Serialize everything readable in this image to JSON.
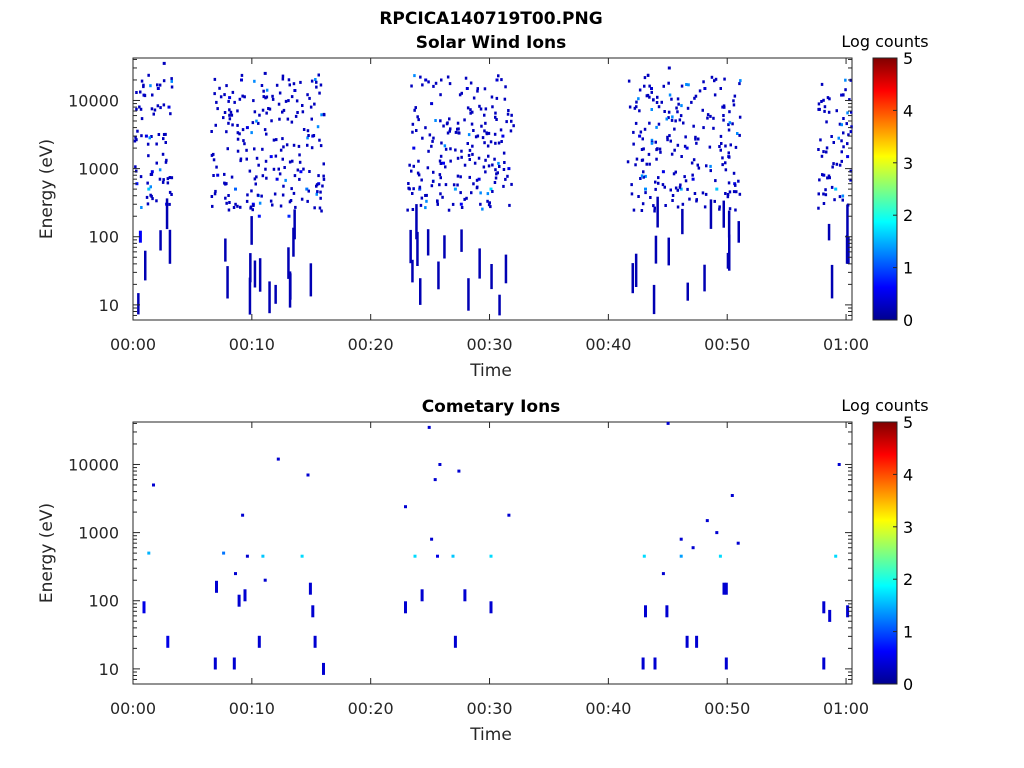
{
  "figure_title": "RPCICA140719T00.PNG",
  "chart_data": [
    {
      "type": "heatmap",
      "title": "Solar Wind Ions",
      "xlabel": "Time",
      "ylabel": "Energy (eV)",
      "x_ticks": [
        "00:00",
        "00:10",
        "00:20",
        "00:30",
        "00:40",
        "00:50",
        "01:00"
      ],
      "x_tick_minutes": [
        0,
        10,
        20,
        30,
        40,
        50,
        60
      ],
      "xlim_minutes": [
        0,
        60.5
      ],
      "y_scale": "log",
      "y_ticks": [
        "10",
        "100",
        "1000",
        "10000"
      ],
      "y_tick_values": [
        10,
        100,
        1000,
        10000
      ],
      "ylim": [
        6,
        42000
      ],
      "colorbar": {
        "label": "Log counts",
        "ticks": [
          "0",
          "1",
          "2",
          "3",
          "4",
          "5"
        ],
        "range": [
          0,
          5
        ],
        "colormap": "jet"
      },
      "active_intervals_minutes": [
        [
          0,
          3.2
        ],
        [
          6.5,
          16
        ],
        [
          23,
          32
        ],
        [
          41.5,
          51
        ],
        [
          57.5,
          60.5
        ]
      ],
      "points": [
        [
          0.2,
          600,
          0.7
        ],
        [
          0.5,
          100,
          0.6
        ],
        [
          0.8,
          12000,
          0.4
        ],
        [
          1.0,
          3000,
          0.5
        ],
        [
          1.2,
          500,
          1.6
        ],
        [
          1.5,
          900,
          0.5
        ],
        [
          2.0,
          15000,
          0.4
        ],
        [
          2.5,
          35000,
          0.3
        ],
        [
          2.7,
          300,
          0.6
        ],
        [
          2.9,
          8000,
          0.5
        ],
        [
          7.0,
          800,
          0.5
        ],
        [
          8.0,
          11000,
          0.5
        ],
        [
          8.5,
          500,
          1.1
        ],
        [
          9.0,
          20000,
          0.4
        ],
        [
          9.5,
          4000,
          0.5
        ],
        [
          10.0,
          300,
          0.6
        ],
        [
          10.5,
          200,
          0.7
        ],
        [
          11.0,
          25000,
          0.3
        ],
        [
          11.5,
          1500,
          0.6
        ],
        [
          12.0,
          700,
          0.5
        ],
        [
          13.0,
          200,
          0.8
        ],
        [
          13.5,
          14000,
          0.4
        ],
        [
          14.0,
          900,
          0.6
        ],
        [
          14.5,
          500,
          1.2
        ],
        [
          15.0,
          3000,
          0.5
        ],
        [
          15.5,
          600,
          0.5
        ],
        [
          23.5,
          2000,
          0.5
        ],
        [
          24.0,
          500,
          1.0
        ],
        [
          24.5,
          20000,
          0.4
        ],
        [
          25.0,
          9000,
          0.4
        ],
        [
          26.0,
          1200,
          0.6
        ],
        [
          27.0,
          500,
          1.4
        ],
        [
          27.5,
          300,
          0.6
        ],
        [
          28.0,
          15000,
          0.4
        ],
        [
          29.0,
          700,
          0.5
        ],
        [
          30.0,
          500,
          1.7
        ],
        [
          30.5,
          20000,
          0.4
        ],
        [
          31.0,
          3000,
          0.5
        ],
        [
          31.5,
          1000,
          0.5
        ],
        [
          42.5,
          3000,
          0.5
        ],
        [
          43.0,
          500,
          1.3
        ],
        [
          43.5,
          15000,
          0.4
        ],
        [
          44.5,
          900,
          0.5
        ],
        [
          45.0,
          30000,
          0.3
        ],
        [
          46.0,
          500,
          1.5
        ],
        [
          46.5,
          2000,
          0.5
        ],
        [
          47.0,
          700,
          0.5
        ],
        [
          48.0,
          15000,
          0.4
        ],
        [
          49.0,
          500,
          1.6
        ],
        [
          49.5,
          8000,
          0.4
        ],
        [
          50.0,
          1500,
          0.5
        ],
        [
          50.5,
          600,
          0.5
        ],
        [
          58.0,
          800,
          0.4
        ],
        [
          59.0,
          500,
          1.6
        ],
        [
          59.5,
          12000,
          0.4
        ],
        [
          60.0,
          1500,
          0.5
        ]
      ]
    },
    {
      "type": "heatmap",
      "title": "Cometary Ions",
      "xlabel": "Time",
      "ylabel": "Energy (eV)",
      "x_ticks": [
        "00:00",
        "00:10",
        "00:20",
        "00:30",
        "00:40",
        "00:50",
        "01:00"
      ],
      "x_tick_minutes": [
        0,
        10,
        20,
        30,
        40,
        50,
        60
      ],
      "xlim_minutes": [
        0,
        60.5
      ],
      "y_scale": "log",
      "y_ticks": [
        "10",
        "100",
        "1000",
        "10000"
      ],
      "y_tick_values": [
        10,
        100,
        1000,
        10000
      ],
      "ylim": [
        6,
        42000
      ],
      "colorbar": {
        "label": "Log counts",
        "ticks": [
          "0",
          "1",
          "2",
          "3",
          "4",
          "5"
        ],
        "range": [
          0,
          5
        ],
        "colormap": "jet"
      },
      "points": [
        [
          0.8,
          80,
          0.5
        ],
        [
          1.2,
          500,
          1.5
        ],
        [
          1.6,
          5000,
          0.4
        ],
        [
          2.8,
          25,
          0.5
        ],
        [
          6.8,
          12,
          0.4
        ],
        [
          6.9,
          160,
          0.4
        ],
        [
          7.5,
          500,
          1.2
        ],
        [
          8.4,
          12,
          0.4
        ],
        [
          8.5,
          250,
          0.4
        ],
        [
          8.8,
          100,
          0.4
        ],
        [
          9.1,
          1800,
          0.4
        ],
        [
          9.3,
          120,
          0.4
        ],
        [
          9.5,
          450,
          0.4
        ],
        [
          10.5,
          25,
          0.4
        ],
        [
          10.8,
          450,
          1.6
        ],
        [
          11.0,
          200,
          0.4
        ],
        [
          12.1,
          12000,
          0.4
        ],
        [
          14.1,
          450,
          1.7
        ],
        [
          14.6,
          7000,
          0.4
        ],
        [
          14.8,
          150,
          0.4
        ],
        [
          15.0,
          70,
          0.4
        ],
        [
          15.2,
          25,
          0.4
        ],
        [
          15.9,
          10,
          0.4
        ],
        [
          22.8,
          80,
          0.4
        ],
        [
          22.8,
          2400,
          0.4
        ],
        [
          23.6,
          450,
          1.7
        ],
        [
          24.2,
          120,
          0.4
        ],
        [
          24.8,
          35000,
          0.4
        ],
        [
          25.0,
          800,
          0.4
        ],
        [
          25.3,
          6000,
          0.4
        ],
        [
          25.5,
          450,
          0.5
        ],
        [
          25.7,
          10000,
          0.4
        ],
        [
          26.8,
          450,
          1.6
        ],
        [
          27.0,
          25,
          0.4
        ],
        [
          27.3,
          8000,
          0.4
        ],
        [
          27.8,
          120,
          0.4
        ],
        [
          30.0,
          450,
          1.7
        ],
        [
          30.0,
          80,
          0.4
        ],
        [
          31.5,
          1800,
          0.4
        ],
        [
          42.8,
          12,
          0.4
        ],
        [
          42.9,
          450,
          1.7
        ],
        [
          43.0,
          70,
          0.4
        ],
        [
          43.8,
          12,
          0.4
        ],
        [
          44.5,
          250,
          0.4
        ],
        [
          44.8,
          70,
          0.4
        ],
        [
          44.9,
          40000,
          0.4
        ],
        [
          46.0,
          800,
          0.4
        ],
        [
          46.0,
          450,
          1.4
        ],
        [
          46.5,
          25,
          0.4
        ],
        [
          47.0,
          600,
          0.4
        ],
        [
          47.3,
          25,
          0.4
        ],
        [
          48.2,
          1500,
          0.4
        ],
        [
          49.0,
          1000,
          0.4
        ],
        [
          49.3,
          450,
          1.7
        ],
        [
          49.6,
          150,
          0.4
        ],
        [
          49.8,
          150,
          0.4
        ],
        [
          49.8,
          12,
          0.4
        ],
        [
          50.3,
          3500,
          0.4
        ],
        [
          50.8,
          700,
          0.4
        ],
        [
          58.0,
          80,
          0.4
        ],
        [
          58.0,
          12,
          0.4
        ],
        [
          58.5,
          60,
          0.4
        ],
        [
          59.0,
          450,
          1.7
        ],
        [
          59.3,
          10000,
          0.4
        ],
        [
          60.0,
          70,
          0.4
        ]
      ]
    }
  ]
}
